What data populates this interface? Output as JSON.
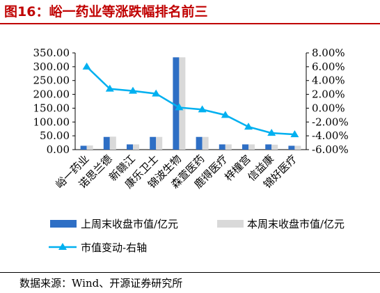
{
  "title": "图16：峪一药业等涨跌幅排名前三",
  "source": "数据来源：Wind、开源证券研究所",
  "chart_data": {
    "type": "bar",
    "categories": [
      "峪一药业",
      "诺思兰德",
      "新赣江",
      "康乐卫士",
      "锦波生物",
      "森萱医药",
      "鹿得医疗",
      "梓橦宫",
      "信益康",
      "锦好医疗"
    ],
    "y_left_ticks": [
      "0.00",
      "50.00",
      "100.00",
      "150.00",
      "200.00",
      "250.00",
      "300.00",
      "350.00"
    ],
    "y_right_ticks": [
      "-6.00%",
      "-4.00%",
      "-2.00%",
      "0.00%",
      "2.00%",
      "4.00%",
      "6.00%",
      "8.00%"
    ],
    "ylim_left": [
      0,
      350
    ],
    "ylim_right": [
      -6,
      8
    ],
    "series": [
      {
        "name": "上周末收盘市值/亿元",
        "type": "bar",
        "axis": "left",
        "color": "#2e6fc5",
        "values": [
          14,
          46,
          19,
          46,
          334,
          46,
          19,
          19,
          19,
          14
        ]
      },
      {
        "name": "本周末收盘市值/亿元",
        "type": "bar",
        "axis": "left",
        "color": "#d9d9d9",
        "values": [
          15,
          47,
          19,
          46,
          334,
          46,
          19,
          19,
          18,
          14
        ]
      },
      {
        "name": "市值变动-右轴",
        "type": "line",
        "axis": "right",
        "color": "#00b0f0",
        "values": [
          6.0,
          2.8,
          2.5,
          2.1,
          0.1,
          -0.2,
          -1.0,
          -2.7,
          -3.6,
          -3.8
        ]
      }
    ],
    "legend_position": "bottom",
    "grid": false
  }
}
